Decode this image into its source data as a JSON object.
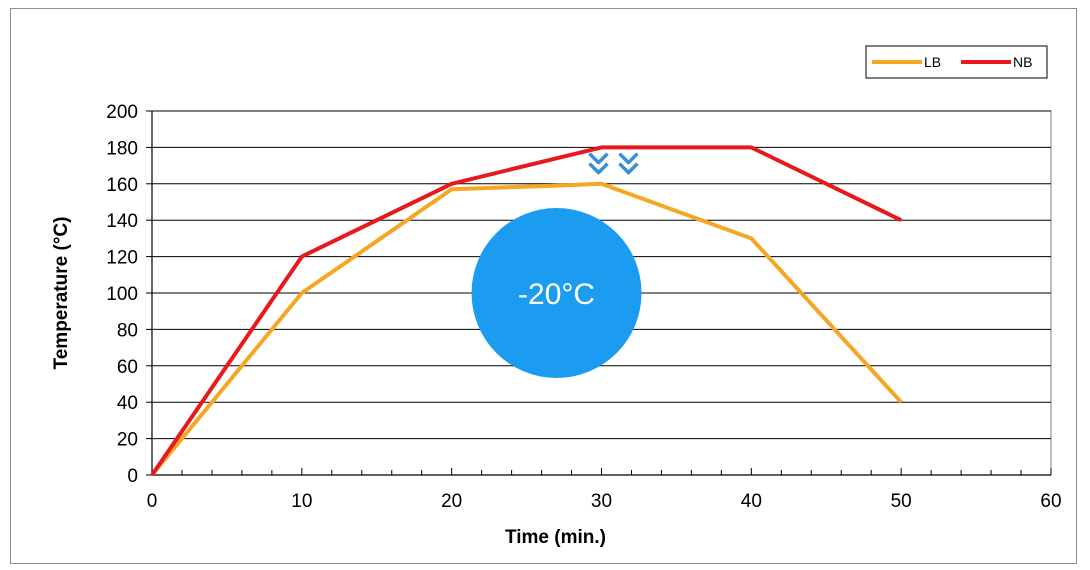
{
  "chart_data": {
    "type": "line",
    "xlabel": "Time (min.)",
    "ylabel": "Temperature (°C)",
    "xlim": [
      0,
      60
    ],
    "ylim": [
      0,
      200
    ],
    "x_ticks": [
      0,
      10,
      20,
      30,
      40,
      50,
      60
    ],
    "y_ticks": [
      0,
      20,
      40,
      60,
      80,
      100,
      120,
      140,
      160,
      180,
      200
    ],
    "x_minor_step": 2,
    "grid": "horizontal",
    "legend_position": "top-right",
    "series": [
      {
        "name": "LB",
        "color": "#f5a623",
        "x": [
          0,
          10,
          20,
          27,
          30,
          40,
          50
        ],
        "y": [
          0,
          100,
          157,
          159,
          160,
          130,
          40
        ]
      },
      {
        "name": "NB",
        "color": "#e8191c",
        "x": [
          0,
          10,
          20,
          30,
          40,
          50
        ],
        "y": [
          0,
          120,
          160,
          180,
          180,
          140
        ]
      }
    ],
    "annotations": [
      {
        "type": "badge",
        "text": "-20°C",
        "color": "#1b9cf0",
        "x": 27,
        "y": 100
      },
      {
        "type": "arrows-down",
        "icon": "double-chevron-down-icon",
        "color": "#3b8fd6",
        "x": [
          29.8,
          31.8
        ],
        "y": 170
      }
    ]
  }
}
